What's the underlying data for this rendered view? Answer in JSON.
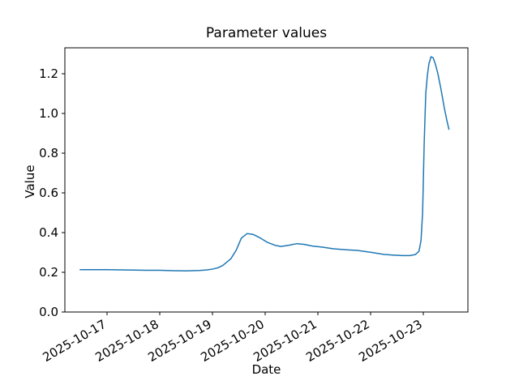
{
  "window": {
    "background_color": "#ffffff",
    "text_color": "#000000"
  },
  "chart": {
    "title": "Parameter values",
    "xlabel": "Date",
    "ylabel": "Value"
  },
  "chart_data": {
    "type": "line",
    "title": "Parameter values",
    "xlabel": "Date",
    "ylabel": "Value",
    "grid": false,
    "legend": false,
    "line_color": "#1f77b4",
    "line_width": 1.5,
    "x_axis": {
      "tick_labels": [
        "2025-10-17",
        "2025-10-18",
        "2025-10-19",
        "2025-10-20",
        "2025-10-21",
        "2025-10-22",
        "2025-10-23"
      ],
      "tick_positions_days": [
        0,
        1,
        2,
        3,
        4,
        5,
        6
      ],
      "xlim_days": [
        -0.8,
        6.85
      ],
      "unit": "days since 2025-10-17",
      "label_rotation_deg": 30
    },
    "y_axis": {
      "ticks": [
        0.0,
        0.2,
        0.4,
        0.6,
        0.8,
        1.0,
        1.2
      ],
      "tick_labels": [
        "0.0",
        "0.2",
        "0.4",
        "0.6",
        "0.8",
        "1.0",
        "1.2"
      ],
      "ylim": [
        0.0,
        1.33
      ]
    },
    "series": [
      {
        "name": "Value",
        "x_days": [
          -0.51,
          -0.25,
          0.0,
          0.25,
          0.5,
          0.75,
          1.0,
          1.25,
          1.5,
          1.75,
          1.9,
          2.0,
          2.1,
          2.2,
          2.35,
          2.45,
          2.55,
          2.66,
          2.78,
          2.9,
          3.05,
          3.2,
          3.3,
          3.45,
          3.6,
          3.75,
          3.9,
          4.08,
          4.3,
          4.55,
          4.75,
          5.0,
          5.25,
          5.4,
          5.6,
          5.75,
          5.85,
          5.92,
          5.96,
          5.99,
          6.02,
          6.05,
          6.08,
          6.11,
          6.15,
          6.19,
          6.23,
          6.28,
          6.34,
          6.4,
          6.45,
          6.49
        ],
        "values": [
          0.213,
          0.213,
          0.213,
          0.212,
          0.211,
          0.21,
          0.21,
          0.208,
          0.207,
          0.209,
          0.212,
          0.216,
          0.222,
          0.235,
          0.268,
          0.31,
          0.372,
          0.395,
          0.39,
          0.374,
          0.35,
          0.335,
          0.33,
          0.336,
          0.344,
          0.34,
          0.332,
          0.327,
          0.318,
          0.313,
          0.31,
          0.301,
          0.29,
          0.287,
          0.284,
          0.284,
          0.289,
          0.305,
          0.36,
          0.5,
          0.85,
          1.1,
          1.19,
          1.25,
          1.285,
          1.28,
          1.25,
          1.2,
          1.12,
          1.03,
          0.965,
          0.92
        ]
      }
    ]
  }
}
